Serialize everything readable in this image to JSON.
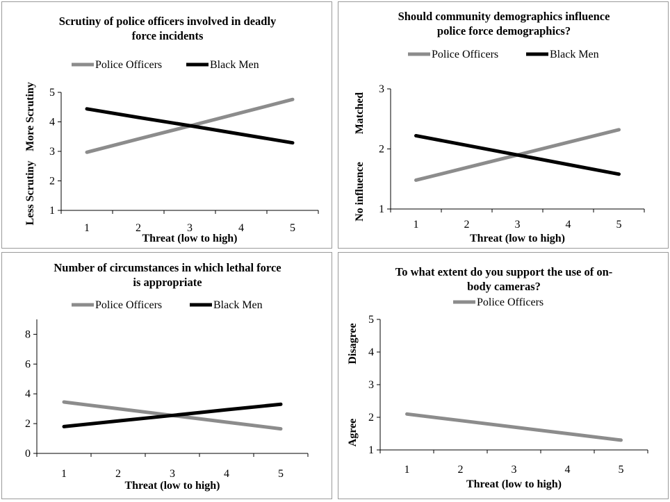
{
  "chart_data": [
    {
      "type": "line",
      "title": [
        "Scrutiny of police officers involved in deadly",
        "force incidents"
      ],
      "xlabel": "Threat (low to high)",
      "ylabel_top": "More Scrutiny",
      "ylabel_bottom": "Less Scrutiny",
      "x": [
        1,
        2,
        3,
        4,
        5
      ],
      "ylim": [
        1,
        5
      ],
      "yticks": [
        1,
        2,
        3,
        4,
        5
      ],
      "series": [
        {
          "name": "Police Officers",
          "color": "#8c8c8c",
          "values": [
            2.97,
            3.42,
            3.86,
            4.31,
            4.76
          ]
        },
        {
          "name": "Black Men",
          "color": "#000000",
          "values": [
            4.44,
            4.15,
            3.87,
            3.58,
            3.29
          ]
        }
      ]
    },
    {
      "type": "line",
      "title": [
        "Should community demographics influence",
        "police force demographics?"
      ],
      "xlabel": "Threat (low to high)",
      "ylabel_top": "Matched",
      "ylabel_bottom": "No influence",
      "x": [
        1,
        2,
        3,
        4,
        5
      ],
      "ylim": [
        1,
        3
      ],
      "yticks": [
        1,
        2,
        3
      ],
      "series": [
        {
          "name": "Police Officers",
          "color": "#8c8c8c",
          "values": [
            1.48,
            1.69,
            1.9,
            2.11,
            2.32
          ]
        },
        {
          "name": "Black Men",
          "color": "#000000",
          "values": [
            2.22,
            2.06,
            1.9,
            1.74,
            1.58
          ]
        }
      ]
    },
    {
      "type": "line",
      "title": [
        "Number of circumstances in which lethal force",
        "is appropriate"
      ],
      "xlabel": "Threat (low to high)",
      "ylabel_top": "",
      "ylabel_bottom": "",
      "x": [
        1,
        2,
        3,
        4,
        5
      ],
      "ylim": [
        0,
        9
      ],
      "yticks": [
        0,
        2,
        4,
        6,
        8
      ],
      "series": [
        {
          "name": "Police Officers",
          "color": "#8c8c8c",
          "values": [
            3.45,
            3.0,
            2.55,
            2.1,
            1.65
          ]
        },
        {
          "name": "Black Men",
          "color": "#000000",
          "values": [
            1.8,
            2.18,
            2.55,
            2.93,
            3.3
          ]
        }
      ]
    },
    {
      "type": "line",
      "title": [
        "To what extent do you support the use of on-",
        "body cameras?"
      ],
      "xlabel": "Threat (low to high)",
      "ylabel_top": "Disagree",
      "ylabel_bottom": "Agree",
      "x": [
        1,
        2,
        3,
        4,
        5
      ],
      "ylim": [
        1,
        5
      ],
      "yticks": [
        1,
        2,
        3,
        4,
        5
      ],
      "series": [
        {
          "name": "Police Officers",
          "color": "#8c8c8c",
          "values": [
            2.1,
            1.9,
            1.7,
            1.5,
            1.3
          ]
        }
      ]
    }
  ]
}
